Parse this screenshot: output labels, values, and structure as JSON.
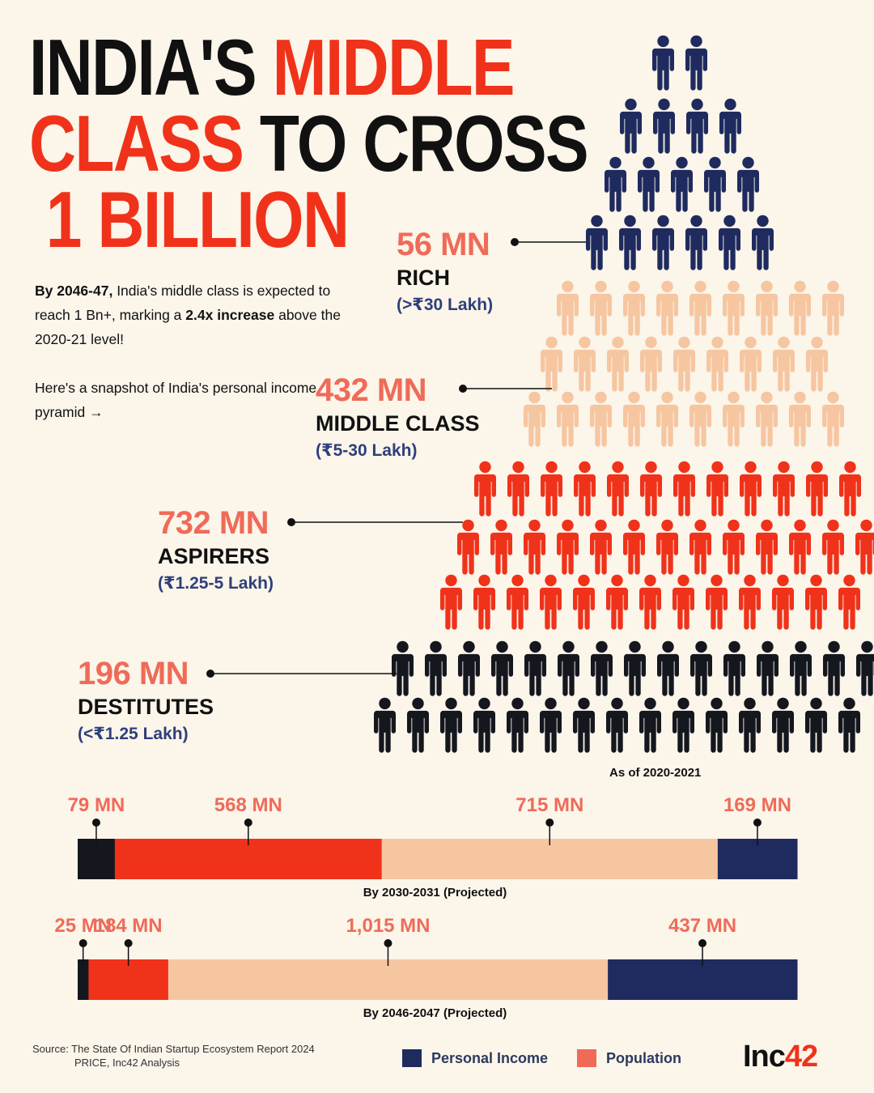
{
  "title": {
    "line1_black": "INDIA'S",
    "line1_red": "MIDDLE",
    "line2_red": "CLASS",
    "line2_black": "TO CROSS",
    "line3_red": "1 BILLION"
  },
  "intro": {
    "p1_bold": "By 2046-47,",
    "p1_text1": " India's middle class is expected to reach 1 Bn+, marking a ",
    "p1_bold2": "2.4x increase",
    "p1_text2": " above the 2020-21 level!",
    "p2": "Here's a snapshot of India's personal income pyramid →"
  },
  "categories": [
    {
      "value": "56 MN",
      "name": "RICH",
      "range": "(>₹30 Lakh)"
    },
    {
      "value": "432 MN",
      "name": "MIDDLE CLASS",
      "range": "(₹5-30 Lakh)"
    },
    {
      "value": "732 MN",
      "name": "ASPIRERS",
      "range": "(₹1.25-5 Lakh)"
    },
    {
      "value": "196 MN",
      "name": "DESTITUTES",
      "range": "(<₹1.25 Lakh)"
    }
  ],
  "as_of": "As of 2020-2021",
  "colors": {
    "rich": "#1f2b5e",
    "middle": "#f6c6a1",
    "aspirers": "#f0321a",
    "destitutes": "#15171f",
    "label": "#ef6b58",
    "range": "#2f3f7a",
    "background": "#fbf5ea"
  },
  "chart_data": {
    "type": "bar",
    "stacked": true,
    "orientation": "horizontal",
    "categories": [
      "By 2030-2031 (Projected)",
      "By 2046-2047 (Projected)"
    ],
    "series": [
      {
        "segment": "destitutes",
        "values": [
          79,
          25
        ],
        "labels": [
          "79 MN",
          "25 MN"
        ]
      },
      {
        "segment": "aspirers",
        "values": [
          568,
          184
        ],
        "labels": [
          "568 MN",
          "184 MN"
        ]
      },
      {
        "segment": "middle",
        "values": [
          715,
          1015
        ],
        "labels": [
          "715 MN",
          "1,015 MN"
        ]
      },
      {
        "segment": "rich",
        "values": [
          169,
          437
        ],
        "labels": [
          "169 MN",
          "437 MN"
        ]
      }
    ]
  },
  "source": {
    "line1": "Source: The State Of Indian Startup Ecosystem Report 2024",
    "line2": "PRICE, Inc42 Analysis"
  },
  "legend": [
    {
      "label": "Personal Income",
      "color": "#1f2b5e"
    },
    {
      "label": "Population",
      "color": "#ef6b58"
    }
  ],
  "logo": {
    "part1": "Inc",
    "part2": "42"
  }
}
